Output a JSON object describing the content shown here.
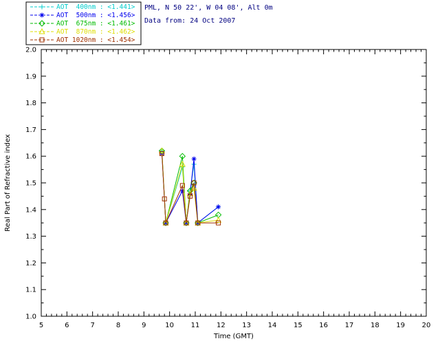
{
  "header": {
    "site_line": "PML, N 50 22', W 04 08', Alt 0m",
    "data_from_line": "Data from: 24 Oct 2007",
    "text_color": "#000080"
  },
  "chart_data": {
    "type": "line",
    "title": "",
    "xlabel": "Time (GMT)",
    "ylabel": "Real Part of Refractive index",
    "xlim": [
      5,
      20
    ],
    "ylim": [
      1.0,
      2.0
    ],
    "xtick_step": 1,
    "ytick_step": 0.1,
    "x_minor_step": 0.2,
    "y_minor_step": 0.05,
    "grid": false,
    "legend_position": "top-left",
    "axis_color": "#000000",
    "series": [
      {
        "name": "AOT 400nm",
        "label": "AOT  400nm : <1.441>",
        "color": "#00cccc",
        "marker": "plus",
        "points": [
          [
            9.7,
            1.62
          ],
          [
            9.85,
            1.35
          ],
          [
            10.5,
            1.56
          ],
          [
            10.65,
            1.35
          ],
          [
            10.8,
            1.47
          ],
          [
            10.95,
            1.57
          ],
          [
            11.1,
            1.35
          ],
          [
            11.9,
            1.41
          ]
        ]
      },
      {
        "name": "AOT 500nm",
        "label": "AOT  500nm : <1.456>",
        "color": "#0000ee",
        "marker": "asterisk",
        "points": [
          [
            9.7,
            1.61
          ],
          [
            9.85,
            1.35
          ],
          [
            10.5,
            1.47
          ],
          [
            10.65,
            1.35
          ],
          [
            10.8,
            1.46
          ],
          [
            10.95,
            1.59
          ],
          [
            11.1,
            1.35
          ],
          [
            11.9,
            1.41
          ]
        ]
      },
      {
        "name": "AOT 675nm",
        "label": "AOT  675nm : <1.461>",
        "color": "#00bb00",
        "marker": "diamond",
        "points": [
          [
            9.7,
            1.62
          ],
          [
            9.85,
            1.35
          ],
          [
            10.5,
            1.6
          ],
          [
            10.65,
            1.35
          ],
          [
            10.8,
            1.47
          ],
          [
            10.95,
            1.5
          ],
          [
            11.1,
            1.35
          ],
          [
            11.9,
            1.38
          ]
        ]
      },
      {
        "name": "AOT 870nm",
        "label": "AOT  870nm : <1.462>",
        "color": "#dddd00",
        "marker": "triangle",
        "points": [
          [
            9.7,
            1.62
          ],
          [
            9.85,
            1.35
          ],
          [
            10.5,
            1.57
          ],
          [
            10.65,
            1.35
          ],
          [
            10.8,
            1.46
          ],
          [
            10.95,
            1.48
          ],
          [
            11.1,
            1.35
          ],
          [
            11.9,
            1.36
          ]
        ]
      },
      {
        "name": "AOT 1020nm",
        "label": "AOT 1020nm : <1.454>",
        "color": "#a03000",
        "marker": "square",
        "points": [
          [
            9.7,
            1.61
          ],
          [
            9.8,
            1.44
          ],
          [
            9.85,
            1.35
          ],
          [
            10.5,
            1.49
          ],
          [
            10.65,
            1.35
          ],
          [
            10.8,
            1.45
          ],
          [
            10.95,
            1.5
          ],
          [
            11.1,
            1.35
          ],
          [
            11.9,
            1.35
          ]
        ]
      }
    ]
  }
}
